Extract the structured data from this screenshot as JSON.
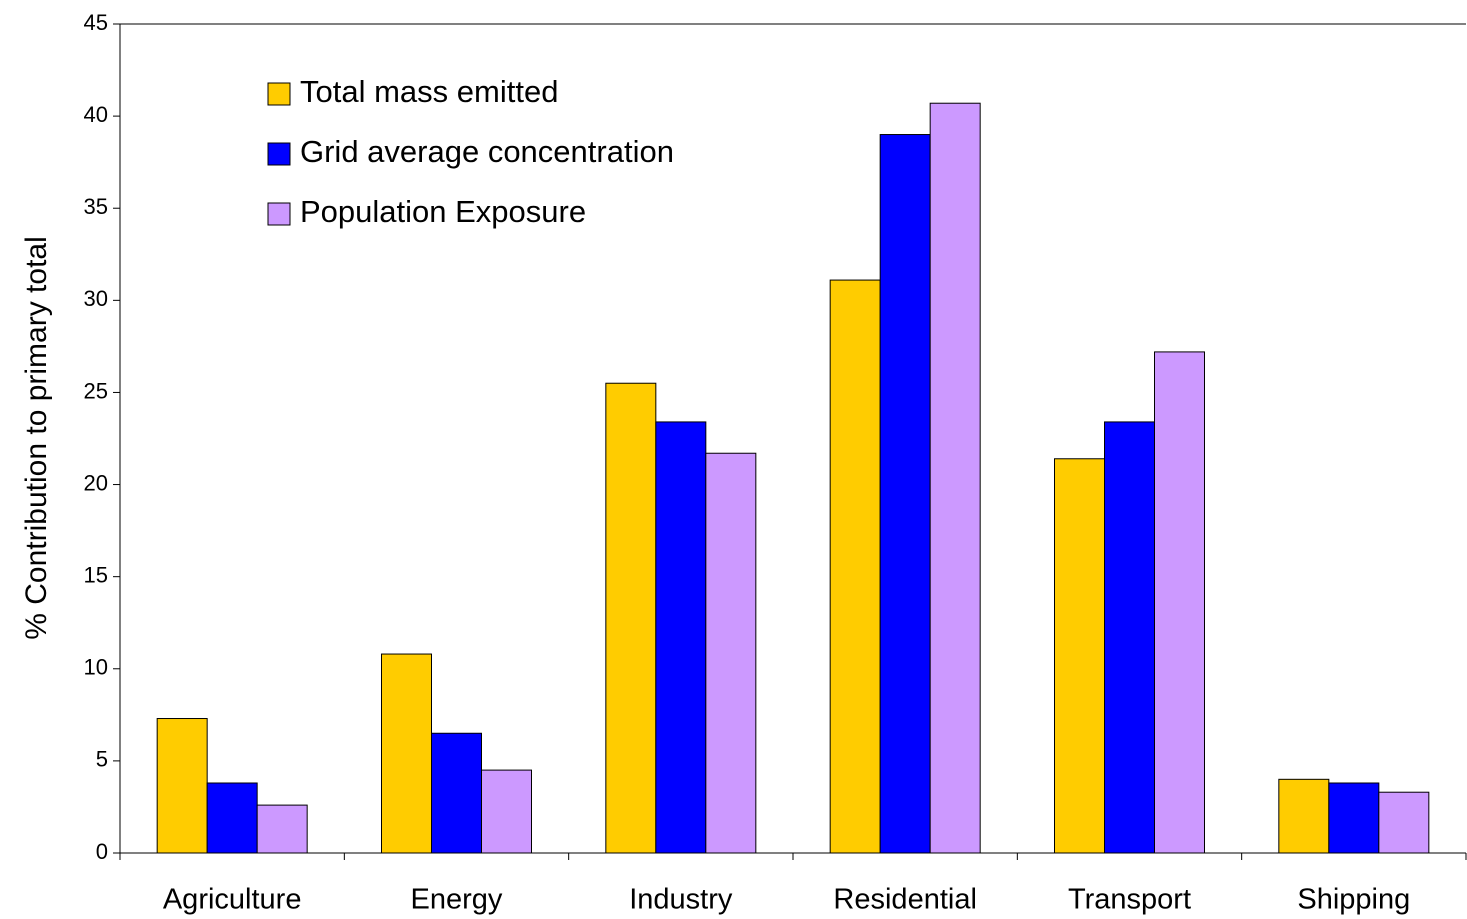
{
  "chart_data": {
    "type": "bar",
    "y_axis_label": "% Contribution to primary total",
    "categories": [
      "Agriculture",
      "Energy",
      "Industry",
      "Residential",
      "Transport",
      "Shipping"
    ],
    "series": [
      {
        "name": "Total mass emitted",
        "color": "#FFCC00",
        "values": [
          7.3,
          10.8,
          25.5,
          31.1,
          21.4,
          4.0
        ]
      },
      {
        "name": "Grid average concentration",
        "color": "#0000FF",
        "values": [
          3.8,
          6.5,
          23.4,
          39.0,
          23.4,
          3.8
        ]
      },
      {
        "name": "Population Exposure",
        "color": "#CC99FF",
        "values": [
          2.6,
          4.5,
          21.7,
          40.7,
          27.2,
          3.3
        ]
      }
    ],
    "ylim": [
      0,
      45
    ],
    "yticks": [
      0,
      5,
      10,
      15,
      20,
      25,
      30,
      35,
      40,
      45
    ],
    "grid": false,
    "legend_position": "upper left"
  }
}
